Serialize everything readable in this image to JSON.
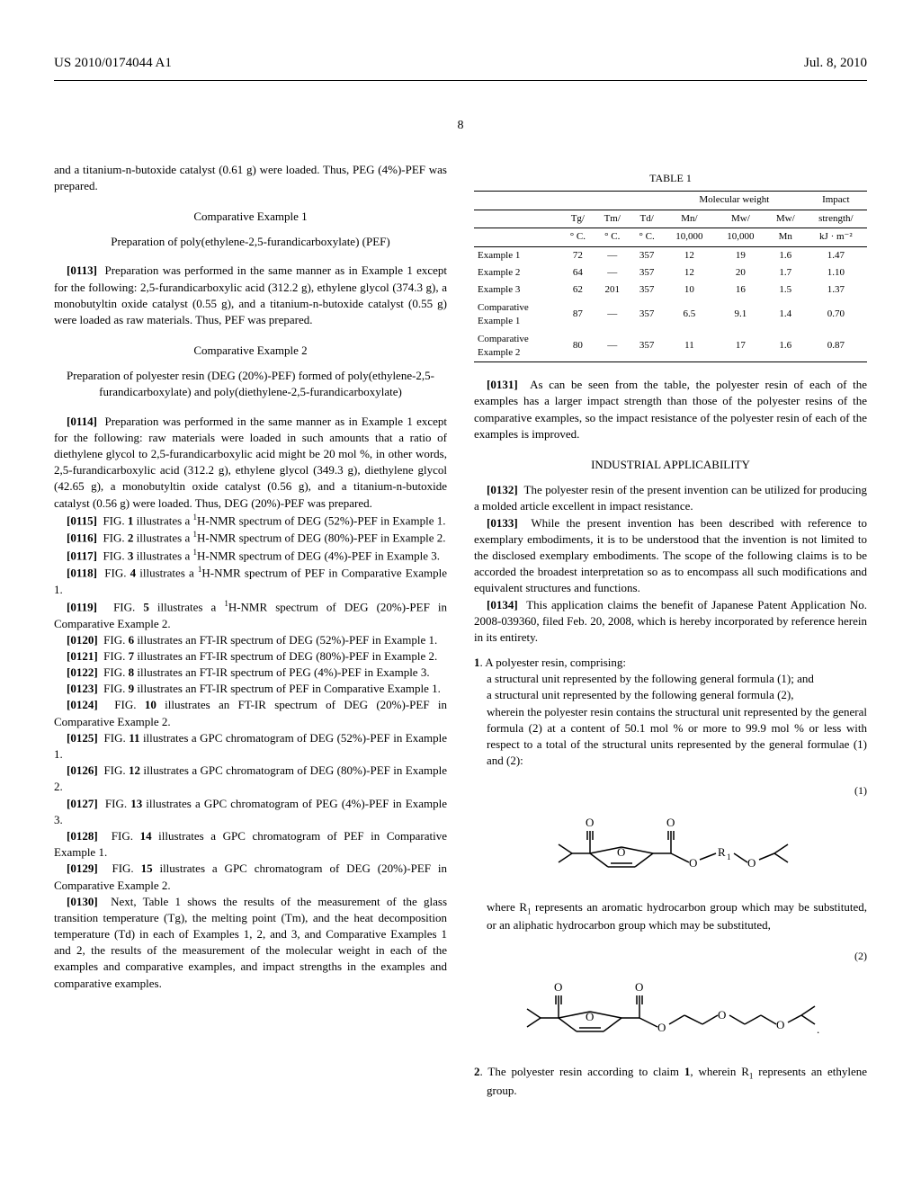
{
  "header": {
    "doc_number": "US 2010/0174044 A1",
    "date": "Jul. 8, 2010",
    "page_number": "8"
  },
  "left_col": {
    "intro": "and a titanium-n-butoxide catalyst (0.61 g) were loaded. Thus, PEG (4%)-PEF was prepared.",
    "comp1_title": "Comparative Example 1",
    "comp1_subtitle": "Preparation of poly(ethylene-2,5-furandicarboxylate) (PEF)",
    "para_0113_num": "[0113]",
    "para_0113": "Preparation was performed in the same manner as in Example 1 except for the following: 2,5-furandicarboxylic acid (312.2 g), ethylene glycol (374.3 g), a monobutyltin oxide catalyst (0.55 g), and a titanium-n-butoxide catalyst (0.55 g) were loaded as raw materials. Thus, PEF was prepared.",
    "comp2_title": "Comparative Example 2",
    "comp2_subtitle": "Preparation of polyester resin (DEG (20%)-PEF) formed of poly(ethylene-2,5-furandicarboxylate) and poly(diethylene-2,5-furandicarboxylate)",
    "para_0114_num": "[0114]",
    "para_0114": "Preparation was performed in the same manner as in Example 1 except for the following: raw materials were loaded in such amounts that a ratio of diethylene glycol to 2,5-furandicarboxylic acid might be 20 mol %, in other words, 2,5-furandicarboxylic acid (312.2 g), ethylene glycol (349.3 g), diethylene glycol (42.65 g), a monobutyltin oxide catalyst (0.56 g), and a titanium-n-butoxide catalyst (0.56 g) were loaded. Thus, DEG (20%)-PEF was prepared.",
    "para_0115_num": "[0115]",
    "para_0115": "FIG. 1 illustrates a 1H-NMR spectrum of DEG (52%)-PEF in Example 1.",
    "para_0116_num": "[0116]",
    "para_0116": "FIG. 2 illustrates a 1H-NMR spectrum of DEG (80%)-PEF in Example 2.",
    "para_0117_num": "[0117]",
    "para_0117": "FIG. 3 illustrates a 1H-NMR spectrum of DEG (4%)-PEF in Example 3.",
    "para_0118_num": "[0118]",
    "para_0118": "FIG. 4 illustrates a 1H-NMR spectrum of PEF in Comparative Example 1.",
    "para_0119_num": "[0119]",
    "para_0119": "FIG. 5 illustrates a 1H-NMR spectrum of DEG (20%)-PEF in Comparative Example 2.",
    "para_0120_num": "[0120]",
    "para_0120": "FIG. 6 illustrates an FT-IR spectrum of DEG (52%)-PEF in Example 1.",
    "para_0121_num": "[0121]",
    "para_0121": "FIG. 7 illustrates an FT-IR spectrum of DEG (80%)-PEF in Example 2.",
    "para_0122_num": "[0122]",
    "para_0122": "FIG. 8 illustrates an FT-IR spectrum of PEG (4%)-PEF in Example 3.",
    "para_0123_num": "[0123]",
    "para_0123": "FIG. 9 illustrates an FT-IR spectrum of PEF in Comparative Example 1.",
    "para_0124_num": "[0124]",
    "para_0124": "FIG. 10 illustrates an FT-IR spectrum of DEG (20%)-PEF in Comparative Example 2.",
    "para_0125_num": "[0125]",
    "para_0125": "FIG. 11 illustrates a GPC chromatogram of DEG (52%)-PEF in Example 1.",
    "para_0126_num": "[0126]",
    "para_0126": "FIG. 12 illustrates a GPC chromatogram of DEG (80%)-PEF in Example 2.",
    "para_0127_num": "[0127]",
    "para_0127": "FIG. 13 illustrates a GPC chromatogram of PEG (4%)-PEF in Example 3.",
    "para_0128_num": "[0128]",
    "para_0128": "FIG. 14 illustrates a GPC chromatogram of PEF in Comparative Example 1.",
    "para_0129_num": "[0129]",
    "para_0129": "FIG. 15 illustrates a GPC chromatogram of DEG (20%)-PEF in Comparative Example 2.",
    "para_0130_num": "[0130]",
    "para_0130": "Next, Table 1 shows the results of the measurement of the glass transition temperature (Tg), the melting point (Tm), and the heat decomposition temperature (Td) in each of Examples 1, 2, and 3, and Comparative Examples 1 and 2, the results of the measurement of the molecular weight in each of the examples and comparative examples, and impact strengths in the examples and comparative examples."
  },
  "table1": {
    "caption": "TABLE 1",
    "col_group": "Molecular weight",
    "headers": {
      "tg": "Tg/",
      "tg2": "° C.",
      "tm": "Tm/",
      "tm2": "° C.",
      "td": "Td/",
      "td2": "° C.",
      "mn": "Mn/",
      "mn2": "10,000",
      "mw": "Mw/",
      "mw2": "10,000",
      "mwmn": "Mw/",
      "mwmn2": "Mn",
      "impact": "Impact",
      "impact2": "strength/",
      "impact3": "kJ · m⁻²"
    },
    "rows": [
      {
        "label": "Example 1",
        "tg": "72",
        "tm": "—",
        "td": "357",
        "mn": "12",
        "mw": "19",
        "mwmn": "1.6",
        "impact": "1.47"
      },
      {
        "label": "Example 2",
        "tg": "64",
        "tm": "—",
        "td": "357",
        "mn": "12",
        "mw": "20",
        "mwmn": "1.7",
        "impact": "1.10"
      },
      {
        "label": "Example 3",
        "tg": "62",
        "tm": "201",
        "td": "357",
        "mn": "10",
        "mw": "16",
        "mwmn": "1.5",
        "impact": "1.37"
      },
      {
        "label": "Comparative Example 1",
        "tg": "87",
        "tm": "—",
        "td": "357",
        "mn": "6.5",
        "mw": "9.1",
        "mwmn": "1.4",
        "impact": "0.70"
      },
      {
        "label": "Comparative Example 2",
        "tg": "80",
        "tm": "—",
        "td": "357",
        "mn": "11",
        "mw": "17",
        "mwmn": "1.6",
        "impact": "0.87"
      }
    ]
  },
  "right_col": {
    "para_0131_num": "[0131]",
    "para_0131": "As can be seen from the table, the polyester resin of each of the examples has a larger impact strength than those of the polyester resins of the comparative examples, so the impact resistance of the polyester resin of each of the examples is improved.",
    "ind_title": "INDUSTRIAL APPLICABILITY",
    "para_0132_num": "[0132]",
    "para_0132": "The polyester resin of the present invention can be utilized for producing a molded article excellent in impact resistance.",
    "para_0133_num": "[0133]",
    "para_0133": "While the present invention has been described with reference to exemplary embodiments, it is to be understood that the invention is not limited to the disclosed exemplary embodiments. The scope of the following claims is to be accorded the broadest interpretation so as to encompass all such modifications and equivalent structures and functions.",
    "para_0134_num": "[0134]",
    "para_0134": "This application claims the benefit of Japanese Patent Application No. 2008-039360, filed Feb. 20, 2008, which is hereby incorporated by reference herein in its entirety.",
    "claim1_num": "1",
    "claim1_intro": ". A polyester resin, comprising:",
    "claim1_a": "a structural unit represented by the following general formula (1); and",
    "claim1_b": "a structural unit represented by the following general formula (2),",
    "claim1_c": "wherein the polyester resin contains the structural unit represented by the general formula (2) at a content of 50.1 mol % or more to 99.9 mol % or less with respect to a total of the structural units represented by the general formulae (1) and (2):",
    "formula1_label": "(1)",
    "formula1_desc": "where R1 represents an aromatic hydrocarbon group which may be substituted, or an aliphatic hydrocarbon group which may be substituted.",
    "formula2_label": "(2)",
    "claim2_num": "2",
    "claim2": ". The polyester resin according to claim 1, wherein R1 represents an ethylene group."
  }
}
